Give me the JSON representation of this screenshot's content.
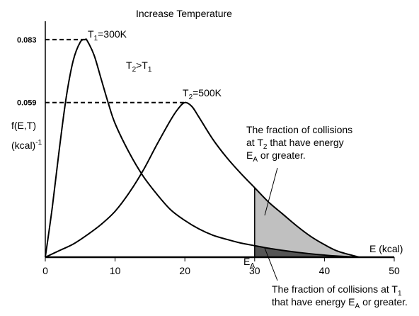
{
  "chart_data": {
    "type": "line",
    "title": "Increase Temperature",
    "xlabel": "E (kcal)",
    "ylabel_line1": "f(E,T)",
    "ylabel_line2": "(kcal)",
    "ylabel_sup": "-1",
    "xlim": [
      0,
      50
    ],
    "x_ticks": [
      "0",
      "10",
      "20",
      "30",
      "40",
      "50"
    ],
    "y_ticks": [
      "0.083",
      "0.059"
    ],
    "y_tick_values": [
      0.083,
      0.059
    ],
    "ylim": [
      0,
      0.09
    ],
    "grid": false,
    "series": [
      {
        "name": "T1=300K",
        "label_main": "T",
        "label_sub": "1",
        "label_rest": "=300K",
        "peak": [
          5.7,
          0.083
        ],
        "x": [
          0,
          1,
          2,
          3,
          4,
          5,
          5.7,
          6,
          7,
          8,
          9,
          10,
          12,
          14,
          16,
          18,
          20,
          22,
          24,
          26,
          28,
          30,
          32,
          34,
          36,
          38,
          40,
          42,
          45
        ],
        "y": [
          0.0,
          0.019,
          0.041,
          0.061,
          0.075,
          0.082,
          0.083,
          0.0826,
          0.077,
          0.068,
          0.059,
          0.051,
          0.04,
          0.031,
          0.024,
          0.018,
          0.014,
          0.0108,
          0.0084,
          0.0068,
          0.0054,
          0.0044,
          0.0034,
          0.0026,
          0.0019,
          0.0013,
          0.0008,
          0.0004,
          0.0
        ]
      },
      {
        "name": "T2=500K",
        "label_main": "T",
        "label_sub": "2",
        "label_rest": "=500K",
        "peak": [
          20,
          0.059
        ],
        "x": [
          0,
          2,
          4,
          6,
          8,
          10,
          12,
          14,
          16,
          18,
          19,
          20,
          21,
          22,
          24,
          26,
          28,
          30,
          32,
          34,
          36,
          38,
          40,
          42,
          45
        ],
        "y": [
          0.0,
          0.0025,
          0.005,
          0.0085,
          0.0125,
          0.0175,
          0.0245,
          0.033,
          0.043,
          0.0525,
          0.0565,
          0.059,
          0.0575,
          0.0535,
          0.045,
          0.038,
          0.032,
          0.0265,
          0.021,
          0.0165,
          0.012,
          0.008,
          0.0048,
          0.0022,
          0.0
        ]
      }
    ],
    "annotations": {
      "ratio_main": "T",
      "ratio_sub2": "2",
      "ratio_gt": ">T",
      "ratio_sub1": "1",
      "ea_main": "E",
      "ea_sub": "A",
      "ea_x": 30,
      "upper_note": {
        "line1": "The fraction of collisions",
        "line2_pre": "at T",
        "line2_sub": "2",
        "line2_post": " that have energy",
        "line3_pre": "E",
        "line3_sub": "A",
        "line3_post": " or greater."
      },
      "lower_note": {
        "line1_pre": "The fraction of collisions at T",
        "line1_sub": "1",
        "line2_pre": "that have energy E",
        "line2_sub": "A",
        "line2_post": " or greater."
      }
    },
    "colors": {
      "light_shade": "#c0c0c0",
      "dark_shade": "#555555",
      "line": "#000000"
    }
  }
}
